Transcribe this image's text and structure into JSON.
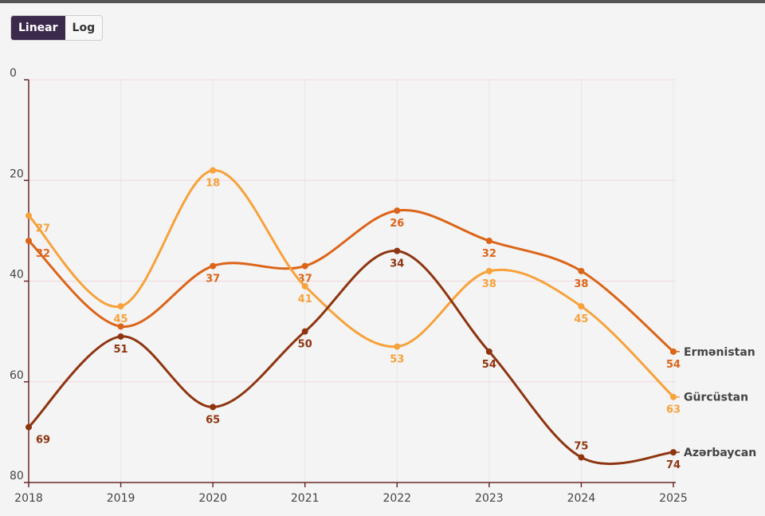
{
  "toggle": {
    "options": [
      "Linear",
      "Log"
    ],
    "active": 0
  },
  "chart_data": {
    "type": "line",
    "categories": [
      "2018",
      "2019",
      "2020",
      "2021",
      "2022",
      "2023",
      "2024",
      "2025"
    ],
    "series": [
      {
        "name": "Ermənistan",
        "color": "#dc6418",
        "values": [
          32,
          49,
          37,
          37,
          26,
          32,
          38,
          54
        ],
        "value_labels": [
          "32",
          null,
          "37",
          "37",
          "26",
          "32",
          "38",
          "54"
        ]
      },
      {
        "name": "Gürcüstan",
        "color": "#f7a23b",
        "values": [
          27,
          45,
          18,
          41,
          53,
          38,
          45,
          63
        ],
        "value_labels": [
          "27",
          "45",
          "18",
          "41",
          "53",
          "38",
          "45",
          "63"
        ]
      },
      {
        "name": "Azərbaycan",
        "color": "#8e3510",
        "values": [
          69,
          51,
          65,
          50,
          34,
          54,
          75,
          74
        ],
        "value_labels": [
          "69",
          "51",
          "65",
          "50",
          "34",
          "54",
          "75",
          "74"
        ]
      }
    ],
    "ylim": [
      0,
      80
    ],
    "yticks": [
      0,
      20,
      40,
      60,
      80
    ],
    "y_inverted": true,
    "grid": true
  }
}
